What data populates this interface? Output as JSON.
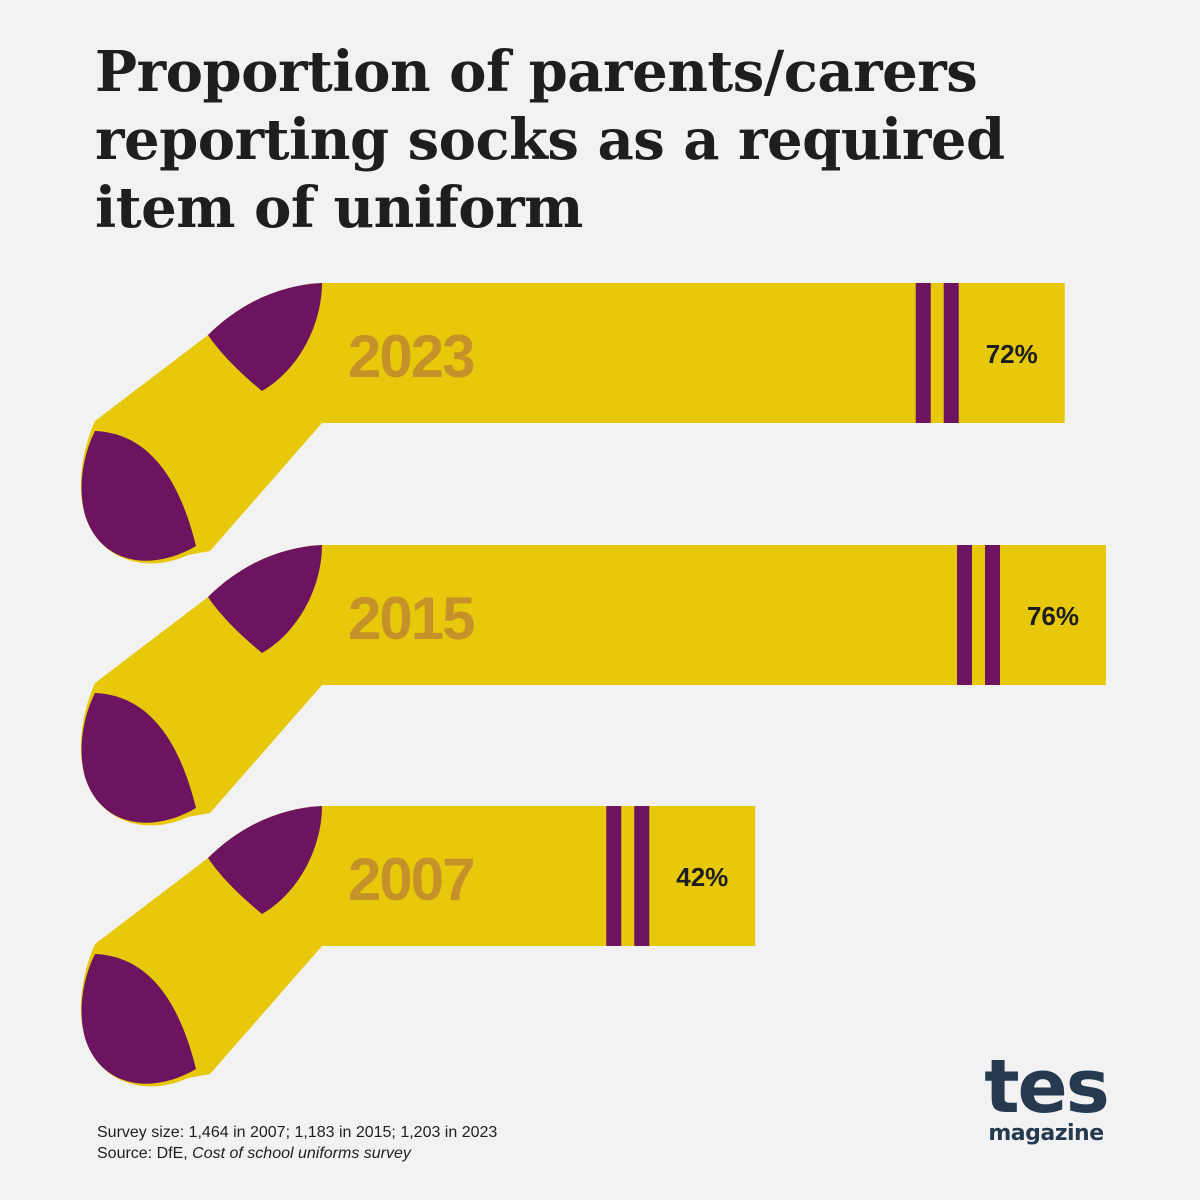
{
  "chart_data": {
    "type": "bar",
    "title": "Proportion of parents/carers reporting socks as a required item of uniform",
    "categories": [
      "2023",
      "2015",
      "2007"
    ],
    "values": [
      72,
      76,
      42
    ],
    "value_labels": [
      "72%",
      "76%",
      "42%"
    ],
    "unit": "%",
    "xlim": [
      0,
      76
    ],
    "orientation": "horizontal",
    "colors": {
      "sock": "#e8c80a",
      "accent": "#6d1460",
      "year_text": "#c49228",
      "value_text": "#1e1e1e"
    }
  },
  "footnote": {
    "survey_size": "Survey size: 1,464 in 2007; 1,183 in 2015; 1,203 in 2023",
    "source_prefix": "Source: DfE, ",
    "source_name": "Cost of school uniforms survey"
  },
  "logo": {
    "word": "tes",
    "sub": "magazine"
  }
}
